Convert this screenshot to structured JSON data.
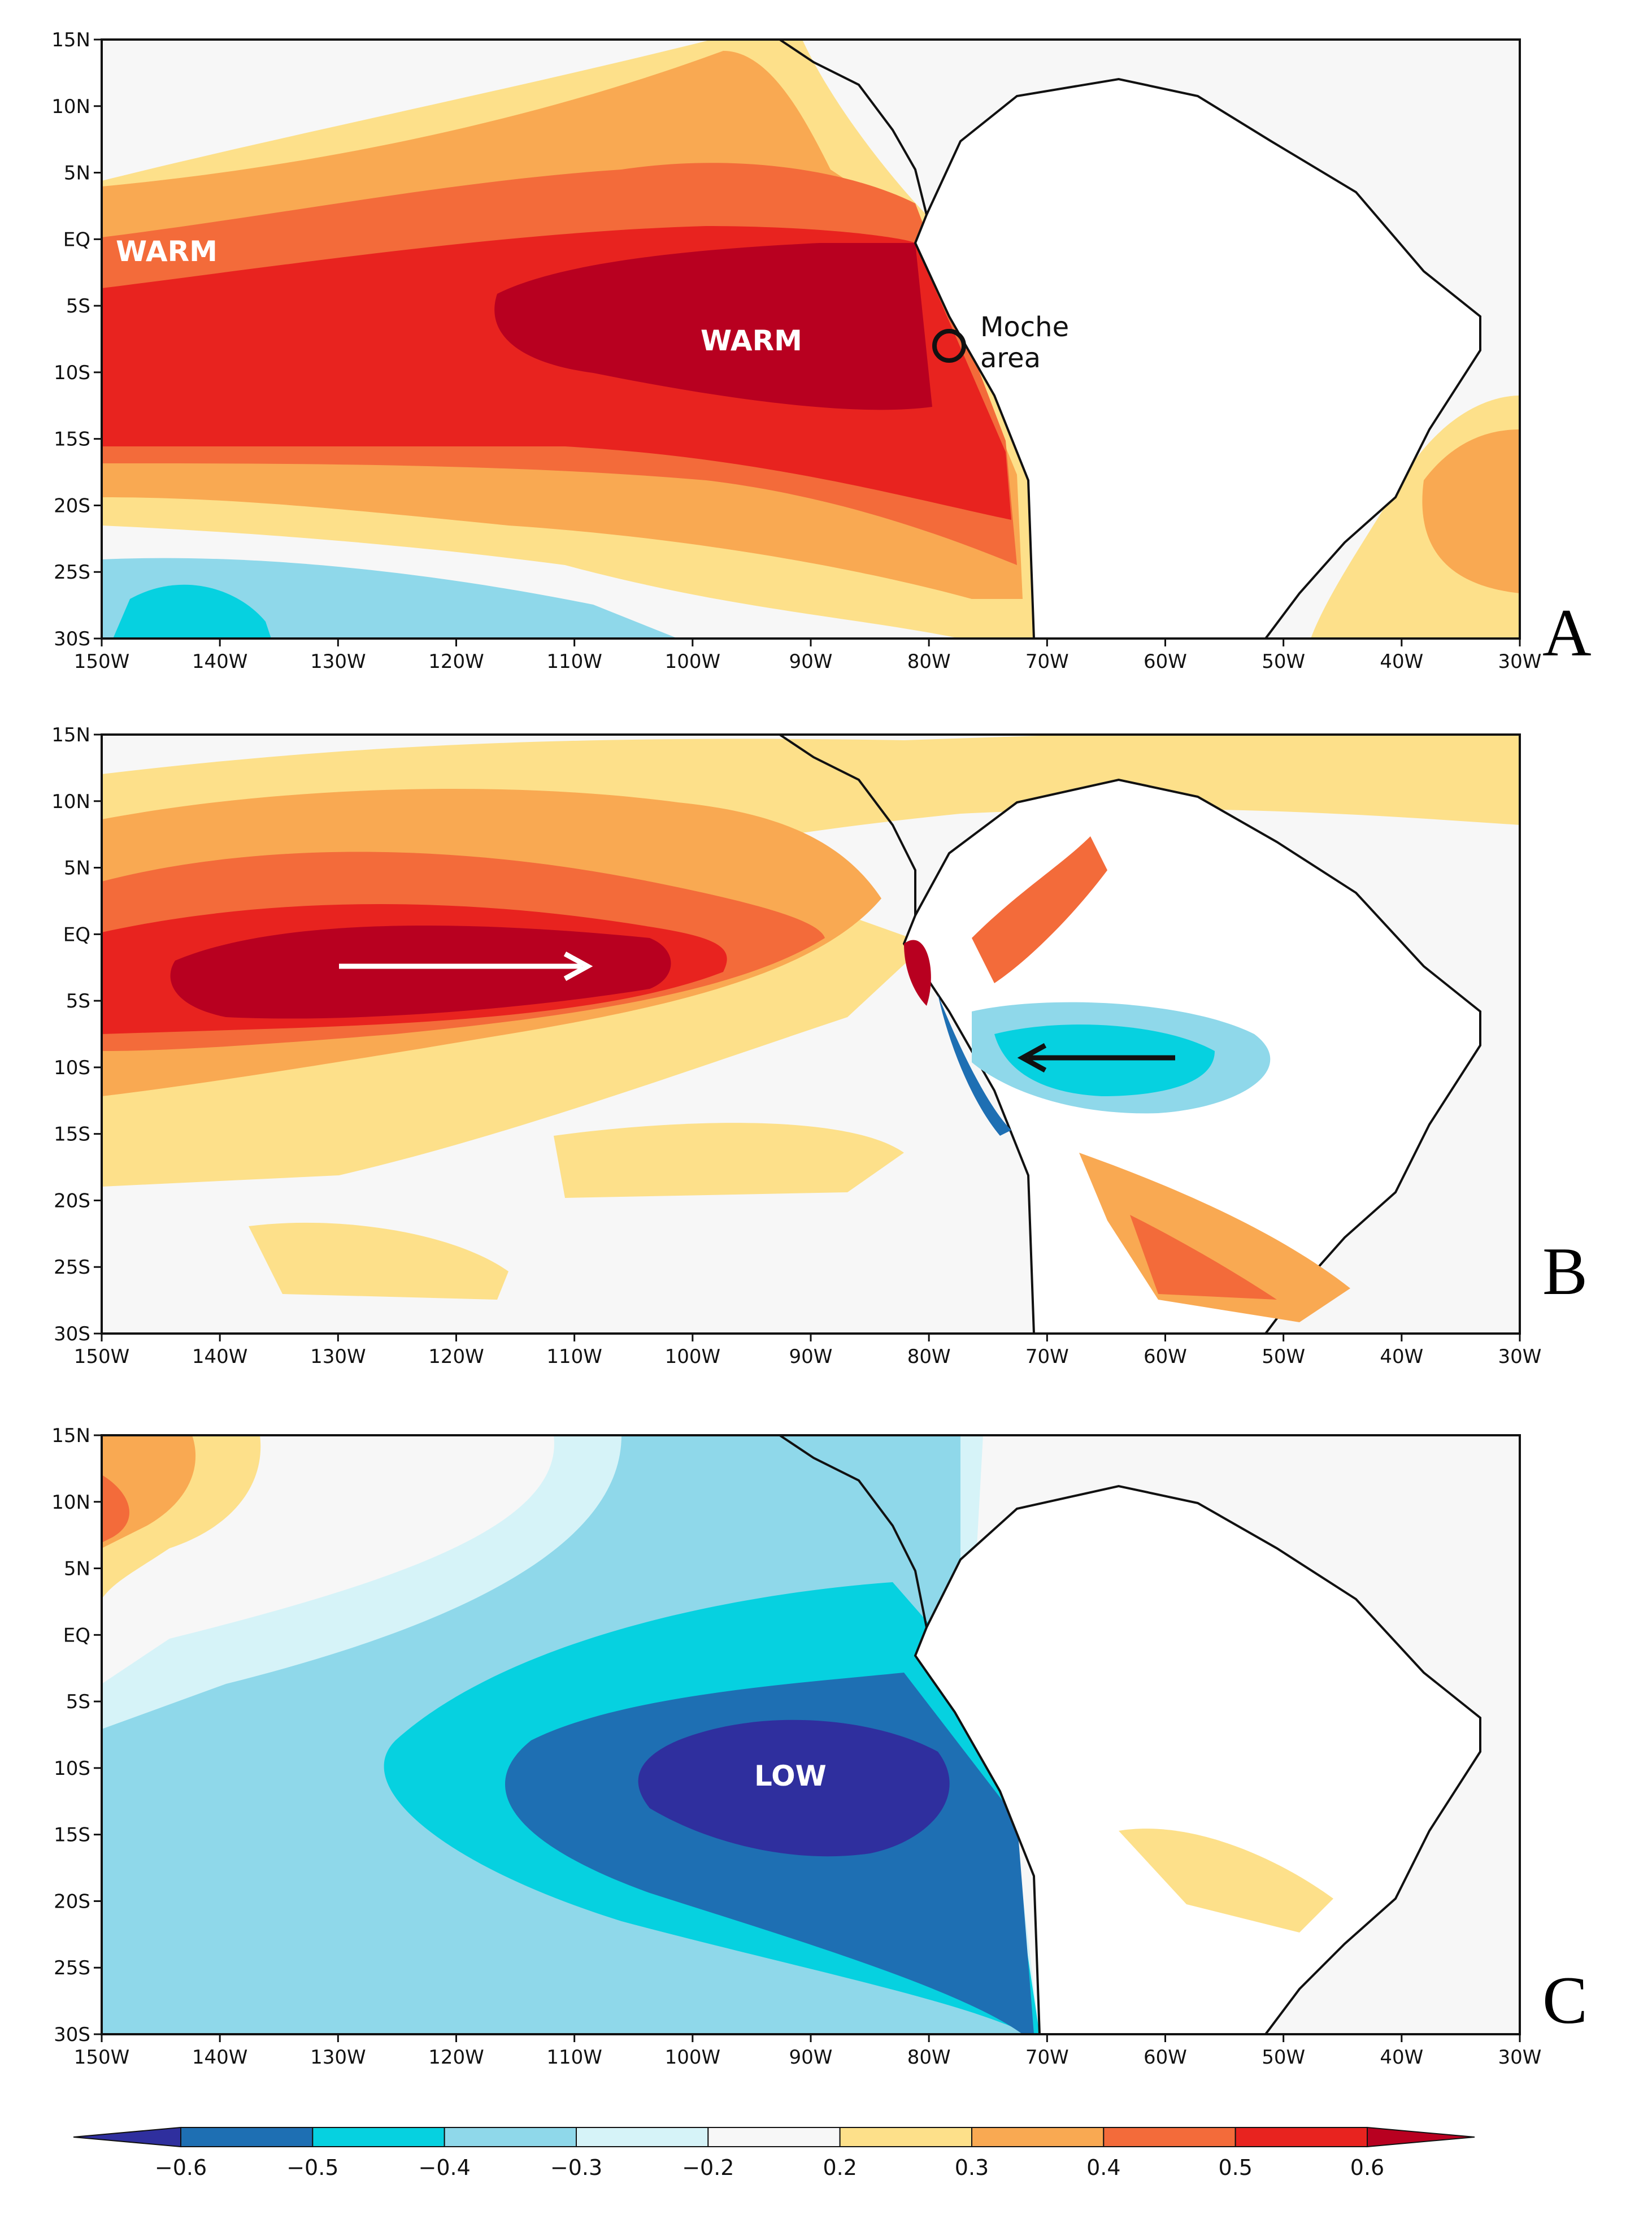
{
  "lat_ticks": [
    "15N",
    "10N",
    "5N",
    "EQ",
    "5S",
    "10S",
    "15S",
    "20S",
    "25S",
    "30S"
  ],
  "lon_ticks": [
    "150W",
    "140W",
    "130W",
    "120W",
    "110W",
    "100W",
    "90W",
    "80W",
    "70W",
    "60W",
    "50W",
    "40W",
    "30W"
  ],
  "panels": [
    {
      "label": "A",
      "annotations": {
        "warm_west": "WARM",
        "warm_center": "WARM",
        "moche_line1": "Moche",
        "moche_line2": "area"
      }
    },
    {
      "label": "B"
    },
    {
      "label": "C",
      "annotations": {
        "low": "LOW"
      }
    }
  ],
  "colorbar": {
    "labels": [
      "−0.6",
      "−0.5",
      "−0.4",
      "−0.3",
      "−0.2",
      "0.2",
      "0.3",
      "0.4",
      "0.5",
      "0.6"
    ],
    "colors": [
      "#2f2f9e",
      "#1e6fb3",
      "#06d1e0",
      "#8fd8ea",
      "#d6f3f8",
      "#f7f7f7",
      "#fde08a",
      "#f9a952",
      "#f36b3a",
      "#e8231f",
      "#b80020"
    ]
  }
}
